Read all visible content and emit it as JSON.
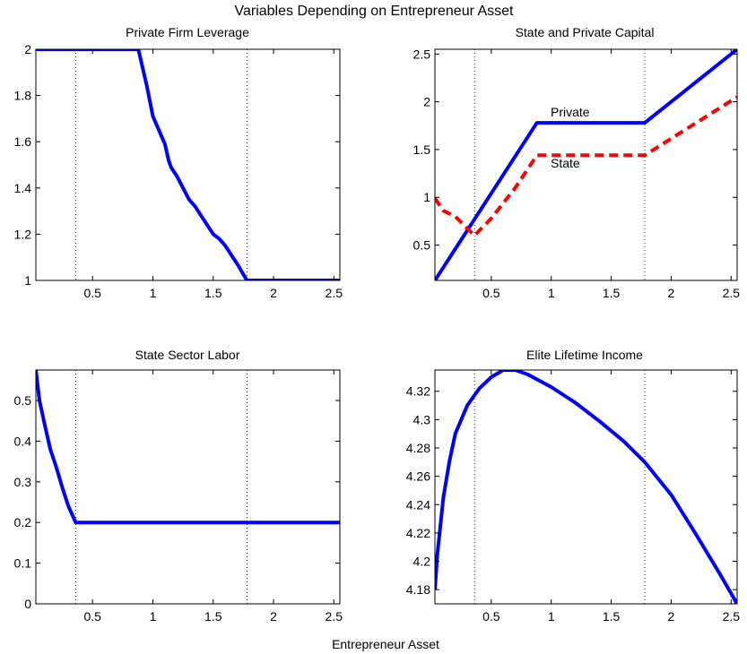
{
  "figure": {
    "suptitle": "Variables Depending on Entrepreneur Asset",
    "xlabel": "Entrepreneur Asset"
  },
  "colors": {
    "blue": "#0000ff",
    "red": "#ff0000"
  },
  "chart_data": [
    {
      "type": "line",
      "title": "Private Firm Leverage",
      "xlim": [
        0.03,
        2.55
      ],
      "ylim": [
        1,
        2
      ],
      "xticks": [
        0.5,
        1,
        1.5,
        2,
        2.5
      ],
      "xtick_labels": [
        "0.5",
        "1",
        "1.5",
        "2",
        "2.5"
      ],
      "yticks": [
        1,
        1.2,
        1.4,
        1.6,
        1.8,
        2
      ],
      "ytick_labels": [
        "1",
        "1.2",
        "1.4",
        "1.6",
        "1.8",
        "2"
      ],
      "vlines": [
        0.36,
        1.78
      ],
      "series": [
        {
          "color": "blue",
          "style": "solid",
          "x": [
            0.03,
            0.88,
            0.95,
            1.0,
            1.05,
            1.1,
            1.13,
            1.15,
            1.2,
            1.25,
            1.3,
            1.35,
            1.4,
            1.45,
            1.5,
            1.55,
            1.6,
            1.65,
            1.7,
            1.78,
            2.55
          ],
          "y": [
            2.0,
            2.0,
            1.84,
            1.71,
            1.65,
            1.59,
            1.52,
            1.49,
            1.45,
            1.4,
            1.35,
            1.32,
            1.28,
            1.24,
            1.2,
            1.18,
            1.15,
            1.11,
            1.07,
            1.0,
            1.0
          ]
        }
      ]
    },
    {
      "type": "line",
      "title": "State and Private Capital",
      "xlim": [
        0.03,
        2.55
      ],
      "ylim": [
        0.13,
        2.55
      ],
      "xticks": [
        0.5,
        1,
        1.5,
        2,
        2.5
      ],
      "xtick_labels": [
        "0.5",
        "1",
        "1.5",
        "2",
        "2.5"
      ],
      "yticks": [
        0.5,
        1,
        1.5,
        2,
        2.5
      ],
      "ytick_labels": [
        "0.5",
        "1",
        "1.5",
        "2",
        "2.5"
      ],
      "vlines": [
        0.36,
        1.78
      ],
      "series": [
        {
          "name": "Private",
          "color": "blue",
          "style": "solid",
          "x": [
            0.03,
            0.88,
            1.78,
            2.55
          ],
          "y": [
            0.13,
            1.78,
            1.78,
            2.55
          ]
        },
        {
          "name": "State",
          "color": "red",
          "style": "dashed",
          "x": [
            0.03,
            0.1,
            0.2,
            0.28,
            0.36,
            0.5,
            0.7,
            0.88,
            1.78,
            2.55
          ],
          "y": [
            0.99,
            0.86,
            0.8,
            0.7,
            0.6,
            0.78,
            1.1,
            1.44,
            1.44,
            2.05
          ]
        }
      ]
    },
    {
      "type": "line",
      "title": "State Sector Labor",
      "xlim": [
        0.03,
        2.55
      ],
      "ylim": [
        0,
        0.575
      ],
      "xticks": [
        0.5,
        1,
        1.5,
        2,
        2.5
      ],
      "xtick_labels": [
        "0.5",
        "1",
        "1.5",
        "2",
        "2.5"
      ],
      "yticks": [
        0,
        0.1,
        0.2,
        0.3,
        0.4,
        0.5
      ],
      "ytick_labels": [
        "0",
        "0.1",
        "0.2",
        "0.3",
        "0.4",
        "0.5"
      ],
      "vlines": [
        0.36,
        1.78
      ],
      "series": [
        {
          "color": "blue",
          "style": "solid",
          "x": [
            0.03,
            0.06,
            0.1,
            0.15,
            0.2,
            0.25,
            0.3,
            0.36,
            2.55
          ],
          "y": [
            0.575,
            0.5,
            0.445,
            0.38,
            0.335,
            0.285,
            0.24,
            0.2,
            0.2
          ]
        }
      ]
    },
    {
      "type": "line",
      "title": "Elite Lifetime Income",
      "xlim": [
        0.03,
        2.55
      ],
      "ylim": [
        4.17,
        4.335
      ],
      "xticks": [
        0.5,
        1,
        1.5,
        2,
        2.5
      ],
      "xtick_labels": [
        "0.5",
        "1",
        "1.5",
        "2",
        "2.5"
      ],
      "yticks": [
        4.18,
        4.2,
        4.22,
        4.24,
        4.26,
        4.28,
        4.3,
        4.32
      ],
      "ytick_labels": [
        "4.18",
        "4.2",
        "4.22",
        "4.24",
        "4.26",
        "4.28",
        "4.3",
        "4.32"
      ],
      "vlines": [
        0.36,
        1.78
      ],
      "series": [
        {
          "color": "blue",
          "style": "solid",
          "x": [
            0.03,
            0.05,
            0.1,
            0.15,
            0.2,
            0.3,
            0.4,
            0.5,
            0.6,
            0.7,
            0.8,
            1.0,
            1.2,
            1.4,
            1.6,
            1.78,
            2.0,
            2.2,
            2.4,
            2.55
          ],
          "y": [
            4.18,
            4.205,
            4.245,
            4.27,
            4.29,
            4.31,
            4.322,
            4.33,
            4.335,
            4.335,
            4.332,
            4.323,
            4.312,
            4.299,
            4.285,
            4.27,
            4.247,
            4.22,
            4.192,
            4.17
          ]
        }
      ]
    }
  ]
}
